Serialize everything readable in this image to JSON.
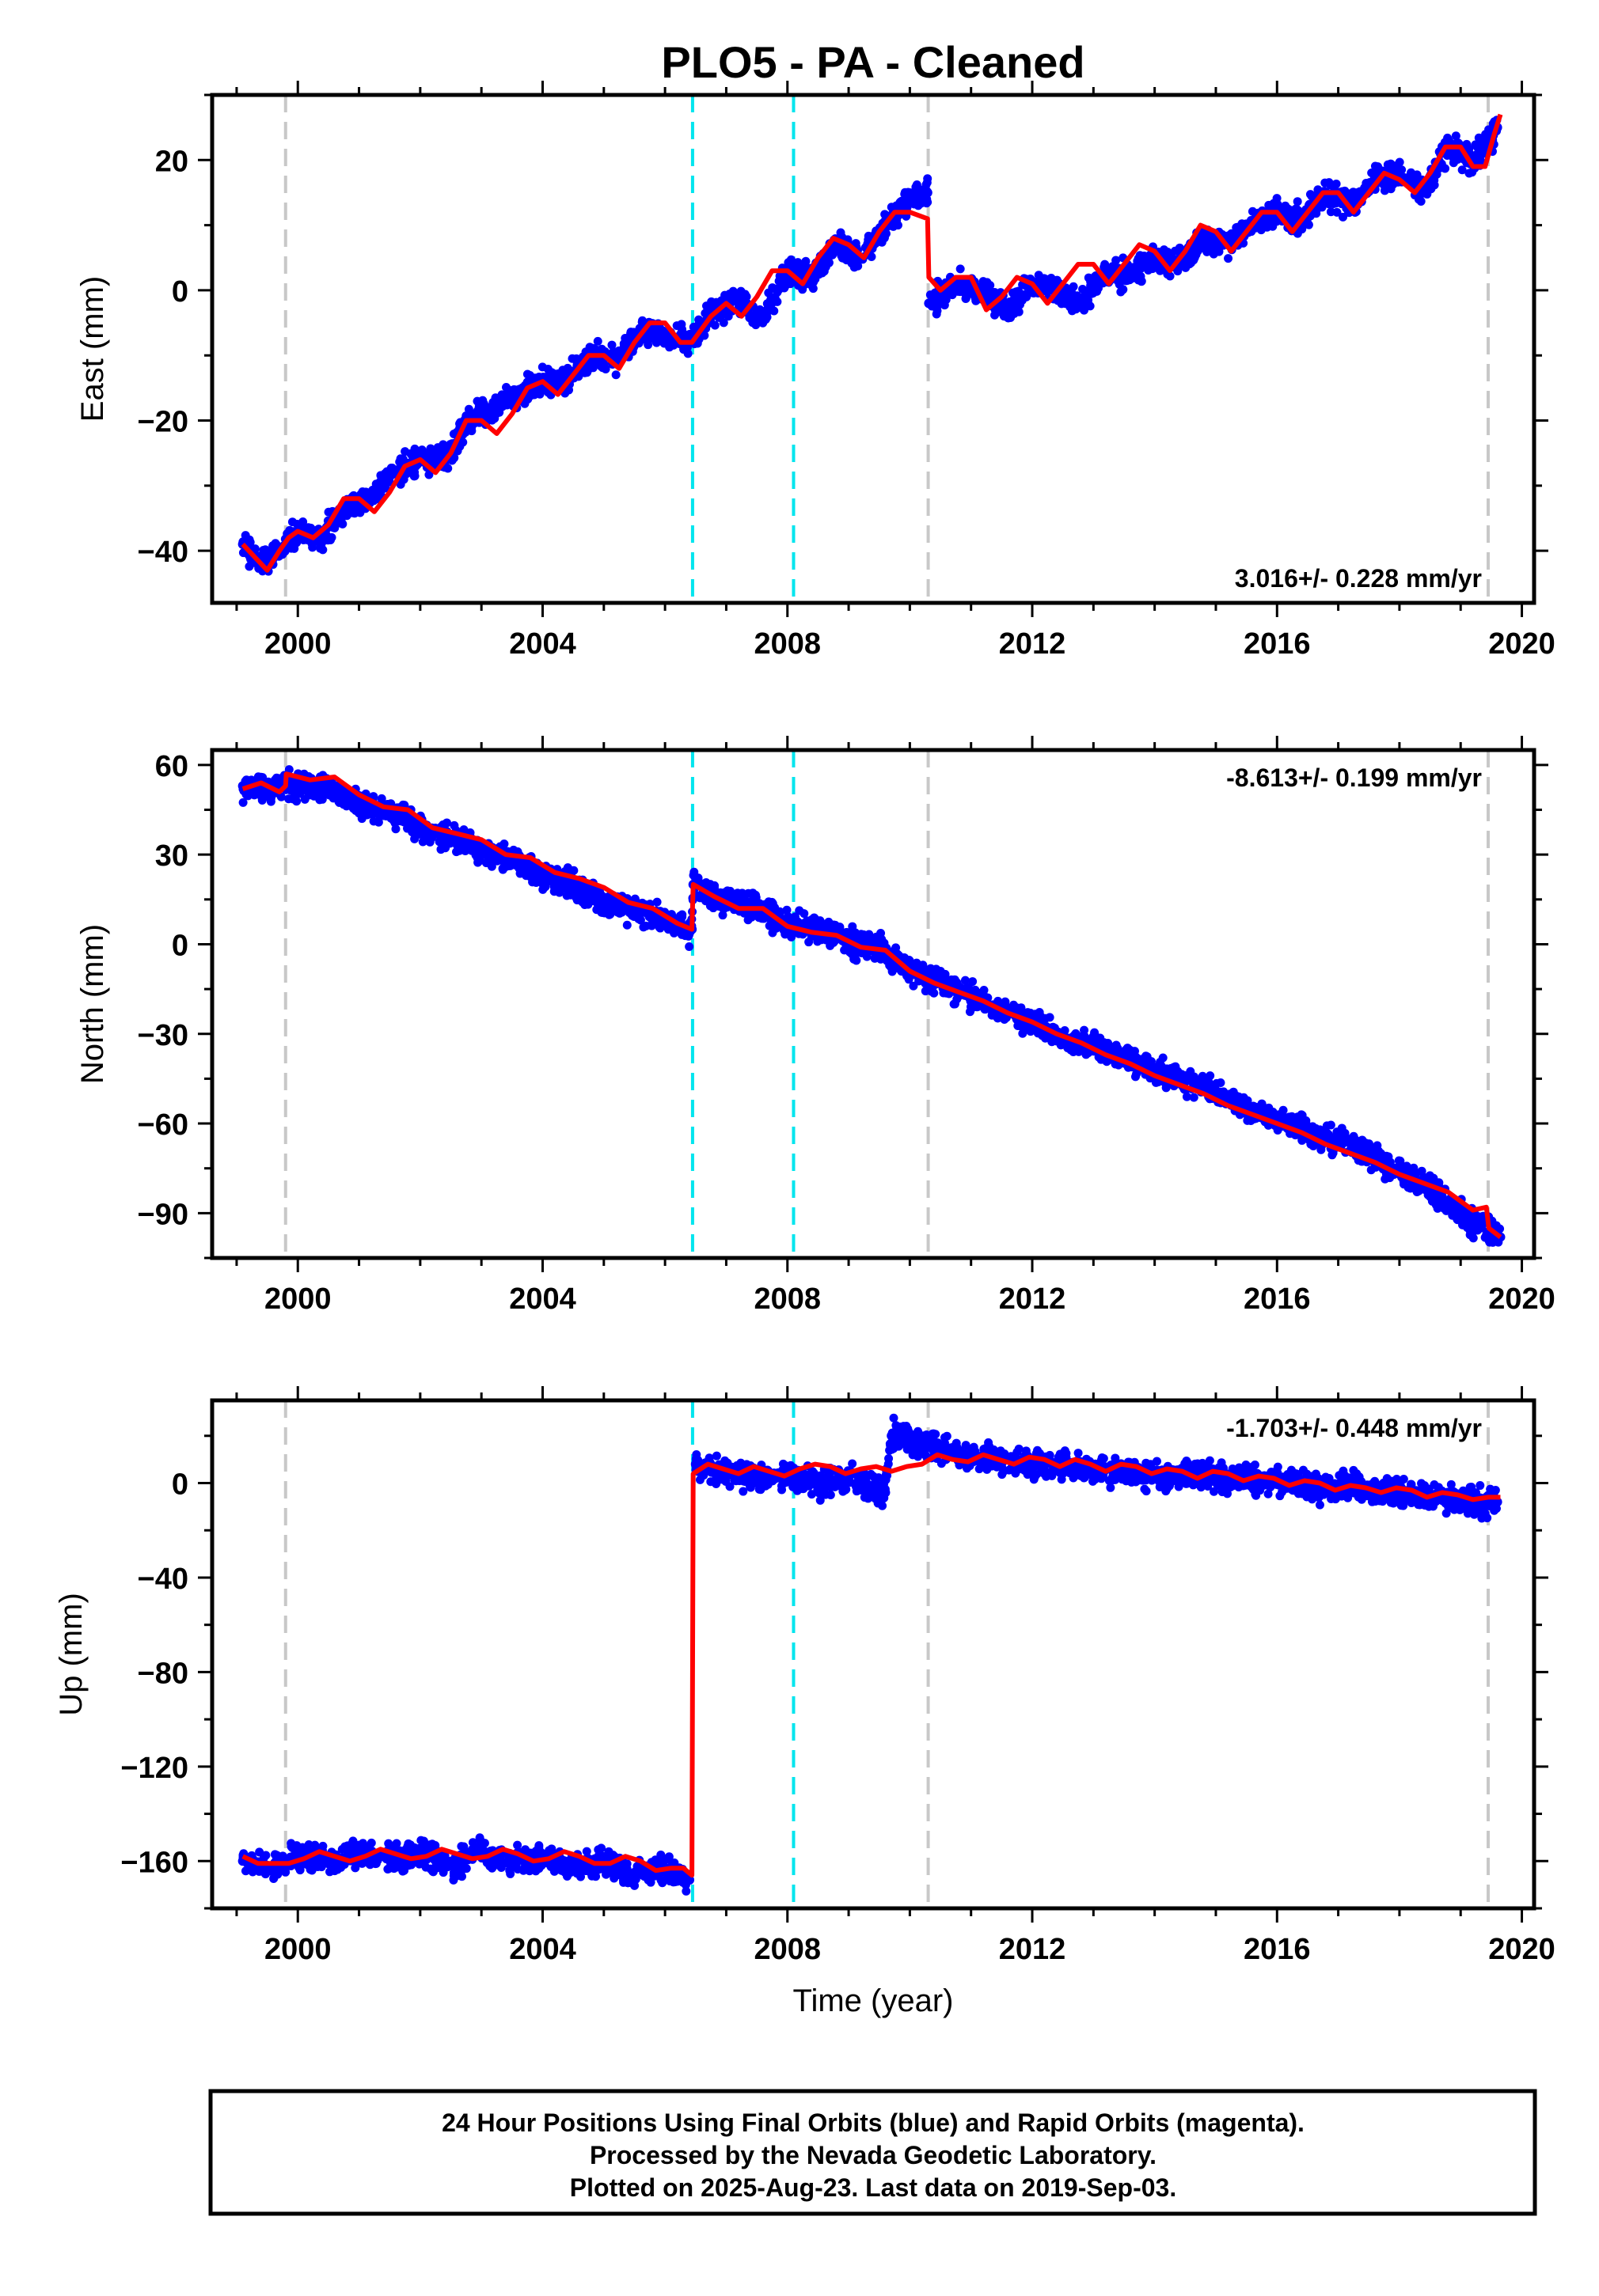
{
  "title": "PLO5  - PA - Cleaned",
  "xlabel": "Time (year)",
  "footer": {
    "lines": [
      "24 Hour Positions Using Final Orbits (blue) and Rapid Orbits (magenta).",
      "Processed by the Nevada Geodetic Laboratory.",
      "Plotted on 2025-Aug-23. Last data on 2019-Sep-03."
    ]
  },
  "colors": {
    "data_points": "#0000ff",
    "model_line": "#ff0000",
    "equipment_change_line": "#c8c8c8",
    "earthquake_line": "#00e5ee"
  },
  "chart_data": [
    {
      "type": "scatter",
      "component": "east",
      "ylabel": "East (mm)",
      "rate_text": "3.016+/- 0.228 mm/yr",
      "xlim": [
        1998.6,
        2020.2
      ],
      "ylim": [
        -48,
        30
      ],
      "xticks": [
        2000,
        2004,
        2008,
        2012,
        2016,
        2020
      ],
      "yticks": [
        -40,
        -20,
        0,
        20
      ],
      "vlines_gray": [
        1999.8,
        2010.3,
        2019.45
      ],
      "vlines_cyan": [
        2006.45,
        2008.1
      ],
      "series": [
        {
          "name": "Final Orbits",
          "x": [
            1999.1,
            1999.4,
            1999.7,
            2000.0,
            2000.4,
            2000.8,
            2001.2,
            2001.6,
            2002.0,
            2002.4,
            2002.8,
            2003.2,
            2003.6,
            2004.0,
            2004.4,
            2004.8,
            2005.2,
            2005.6,
            2006.0,
            2006.45,
            2006.8,
            2007.2,
            2007.6,
            2008.0,
            2008.4,
            2008.8,
            2009.2,
            2009.6,
            2010.0,
            2010.29,
            2010.31,
            2010.8,
            2011.2,
            2011.6,
            2012.0,
            2012.4,
            2012.8,
            2013.2,
            2013.6,
            2014.0,
            2014.4,
            2014.8,
            2015.2,
            2015.6,
            2016.0,
            2016.4,
            2016.8,
            2017.2,
            2017.6,
            2018.0,
            2018.4,
            2018.8,
            2019.2,
            2019.6
          ],
          "y": [
            -39,
            -42,
            -40,
            -37,
            -38,
            -33,
            -32,
            -28,
            -26,
            -26,
            -20,
            -18,
            -16,
            -14,
            -14,
            -10,
            -11,
            -6,
            -7,
            -8,
            -3,
            -2,
            -4,
            3,
            2,
            7,
            5,
            10,
            14,
            15,
            -2,
            1,
            0,
            -3,
            1,
            0,
            -2,
            3,
            2,
            5,
            4,
            8,
            7,
            10,
            12,
            11,
            15,
            13,
            17,
            18,
            15,
            22,
            20,
            25
          ]
        }
      ],
      "model": {
        "x": [
          1999.1,
          1999.3,
          1999.5,
          1999.7,
          1999.85,
          2000.0,
          2000.25,
          2000.5,
          2000.75,
          2001.0,
          2001.25,
          2001.5,
          2001.75,
          2002.0,
          2002.25,
          2002.5,
          2002.75,
          2003.0,
          2003.25,
          2003.5,
          2003.75,
          2004.0,
          2004.25,
          2004.5,
          2004.75,
          2005.0,
          2005.25,
          2005.5,
          2005.75,
          2006.0,
          2006.25,
          2006.44,
          2006.75,
          2007.0,
          2007.25,
          2007.5,
          2007.75,
          2008.0,
          2008.25,
          2008.5,
          2008.75,
          2009.0,
          2009.25,
          2009.5,
          2009.75,
          2010.0,
          2010.29,
          2010.31,
          2010.5,
          2010.75,
          2011.0,
          2011.25,
          2011.5,
          2011.75,
          2012.0,
          2012.25,
          2012.5,
          2012.75,
          2013.0,
          2013.25,
          2013.5,
          2013.75,
          2014.0,
          2014.25,
          2014.5,
          2014.75,
          2015.0,
          2015.25,
          2015.5,
          2015.75,
          2016.0,
          2016.25,
          2016.5,
          2016.75,
          2017.0,
          2017.25,
          2017.5,
          2017.75,
          2018.0,
          2018.25,
          2018.5,
          2018.75,
          2019.0,
          2019.2,
          2019.4,
          2019.55,
          2019.65
        ],
        "y": [
          -39,
          -41,
          -43,
          -40,
          -38,
          -37,
          -38,
          -36,
          -32,
          -32,
          -34,
          -31,
          -27,
          -26,
          -28,
          -25,
          -20,
          -20,
          -22,
          -19,
          -15,
          -14,
          -16,
          -13,
          -10,
          -10,
          -12,
          -8,
          -5,
          -5,
          -8,
          -8,
          -4,
          -2,
          -4,
          -1,
          3,
          3,
          1,
          5,
          8,
          7,
          5,
          9,
          12,
          12,
          11,
          2,
          0,
          2,
          2,
          -3,
          -1,
          2,
          1,
          -2,
          1,
          4,
          4,
          1,
          4,
          7,
          6,
          3,
          6,
          10,
          9,
          6,
          9,
          12,
          12,
          9,
          12,
          15,
          15,
          12,
          15,
          18,
          17,
          15,
          18,
          22,
          22,
          19,
          19,
          24,
          27
        ]
      }
    },
    {
      "type": "scatter",
      "component": "north",
      "ylabel": "North (mm)",
      "rate_text": "-8.613+/- 0.199 mm/yr",
      "xlim": [
        1998.6,
        2020.2
      ],
      "ylim": [
        -105,
        65
      ],
      "xticks": [
        2000,
        2004,
        2008,
        2012,
        2016,
        2020
      ],
      "yticks": [
        -90,
        -60,
        -30,
        0,
        30,
        60
      ],
      "vlines_gray": [
        1999.8,
        2010.3,
        2019.45
      ],
      "vlines_cyan": [
        2006.45,
        2008.1
      ],
      "series": [
        {
          "name": "Final Orbits",
          "x": [
            1999.1,
            1999.5,
            2000.0,
            2000.5,
            2001.0,
            2001.5,
            2002.0,
            2002.5,
            2003.0,
            2003.5,
            2004.0,
            2004.5,
            2005.0,
            2005.5,
            2006.0,
            2006.44,
            2006.46,
            2007.0,
            2007.5,
            2008.0,
            2008.5,
            2009.0,
            2009.5,
            2010.0,
            2010.5,
            2011.0,
            2011.5,
            2012.0,
            2012.5,
            2013.0,
            2013.5,
            2014.0,
            2014.5,
            2015.0,
            2015.5,
            2016.0,
            2016.5,
            2017.0,
            2017.5,
            2018.0,
            2018.5,
            2019.0,
            2019.5,
            2019.65
          ],
          "y": [
            53,
            52,
            54,
            52,
            47,
            45,
            39,
            36,
            31,
            29,
            22,
            20,
            14,
            12,
            8,
            5,
            20,
            14,
            12,
            7,
            5,
            1,
            -1,
            -9,
            -13,
            -18,
            -22,
            -26,
            -31,
            -34,
            -38,
            -42,
            -46,
            -49,
            -55,
            -58,
            -63,
            -66,
            -71,
            -76,
            -82,
            -90,
            -96,
            -98
          ]
        }
      ],
      "model": {
        "x": [
          1999.1,
          1999.4,
          1999.7,
          1999.8,
          1999.81,
          2000.2,
          2000.6,
          2001.0,
          2001.4,
          2001.8,
          2002.2,
          2002.6,
          2003.0,
          2003.4,
          2003.8,
          2004.2,
          2004.6,
          2005.0,
          2005.4,
          2005.8,
          2006.2,
          2006.44,
          2006.46,
          2006.8,
          2007.2,
          2007.6,
          2008.0,
          2008.4,
          2008.8,
          2009.2,
          2009.6,
          2010.0,
          2010.4,
          2010.8,
          2011.2,
          2011.6,
          2012.0,
          2012.4,
          2012.8,
          2013.2,
          2013.6,
          2014.0,
          2014.4,
          2014.8,
          2015.2,
          2015.6,
          2016.0,
          2016.4,
          2016.8,
          2017.2,
          2017.6,
          2018.0,
          2018.4,
          2018.8,
          2019.2,
          2019.42,
          2019.46,
          2019.65
        ],
        "y": [
          52,
          54,
          51,
          53,
          57,
          55,
          56,
          50,
          46,
          45,
          39,
          37,
          35,
          30,
          29,
          24,
          22,
          19,
          14,
          12,
          7,
          5,
          20,
          16,
          12,
          12,
          6,
          4,
          3,
          -1,
          -2,
          -9,
          -13,
          -16,
          -19,
          -23,
          -26,
          -30,
          -33,
          -37,
          -40,
          -44,
          -47,
          -50,
          -54,
          -57,
          -60,
          -63,
          -67,
          -70,
          -73,
          -77,
          -80,
          -83,
          -89,
          -88,
          -95,
          -98
        ]
      }
    },
    {
      "type": "scatter",
      "component": "up",
      "ylabel": "Up (mm)",
      "rate_text": "-1.703+/- 0.448 mm/yr",
      "xlim": [
        1998.6,
        2020.2
      ],
      "ylim": [
        -180,
        35
      ],
      "xticks": [
        2000,
        2004,
        2008,
        2012,
        2016,
        2020
      ],
      "yticks": [
        -160,
        -120,
        -80,
        -40,
        0
      ],
      "vlines_gray": [
        1999.8,
        2010.3,
        2019.45
      ],
      "vlines_cyan": [
        2006.45,
        2008.1
      ],
      "series": [
        {
          "name": "Final Orbits",
          "x": [
            1999.1,
            1999.5,
            2000.0,
            2000.5,
            2001.0,
            2001.5,
            2002.0,
            2002.5,
            2003.0,
            2003.5,
            2004.0,
            2004.5,
            2005.0,
            2005.5,
            2006.0,
            2006.4,
            2006.5,
            2007.0,
            2007.5,
            2008.0,
            2008.5,
            2009.0,
            2009.6,
            2009.7,
            2010.2,
            2010.8,
            2011.5,
            2012.2,
            2013.0,
            2013.8,
            2014.5,
            2015.2,
            2016.0,
            2016.8,
            2017.2,
            2017.6,
            2018.0,
            2018.6,
            2019.2,
            2019.6
          ],
          "y": [
            -160,
            -163,
            -158,
            -161,
            -155,
            -159,
            -157,
            -162,
            -156,
            -160,
            -158,
            -163,
            -160,
            -166,
            -163,
            -168,
            8,
            5,
            2,
            3,
            0,
            2,
            -4,
            20,
            17,
            12,
            10,
            8,
            6,
            4,
            3,
            2,
            1,
            -2,
            -1,
            -3,
            -4,
            -6,
            -8,
            -8
          ]
        }
      ],
      "model": {
        "x": [
          1999.1,
          1999.35,
          1999.6,
          1999.85,
          2000.1,
          2000.35,
          2000.6,
          2000.85,
          2001.1,
          2001.35,
          2001.6,
          2001.85,
          2002.1,
          2002.35,
          2002.6,
          2002.85,
          2003.1,
          2003.35,
          2003.6,
          2003.85,
          2004.1,
          2004.35,
          2004.6,
          2004.85,
          2005.1,
          2005.35,
          2005.6,
          2005.85,
          2006.1,
          2006.3,
          2006.44,
          2006.46,
          2006.7,
          2006.95,
          2007.2,
          2007.45,
          2007.7,
          2007.95,
          2008.2,
          2008.45,
          2008.7,
          2008.95,
          2009.2,
          2009.45,
          2009.7,
          2009.95,
          2010.2,
          2010.45,
          2010.7,
          2010.95,
          2011.2,
          2011.45,
          2011.7,
          2011.95,
          2012.2,
          2012.45,
          2012.7,
          2012.95,
          2013.2,
          2013.45,
          2013.7,
          2013.95,
          2014.2,
          2014.45,
          2014.7,
          2014.95,
          2015.2,
          2015.45,
          2015.7,
          2015.95,
          2016.2,
          2016.45,
          2016.7,
          2016.95,
          2017.2,
          2017.45,
          2017.7,
          2017.95,
          2018.2,
          2018.45,
          2018.7,
          2018.95,
          2019.2,
          2019.45,
          2019.65
        ],
        "y": [
          -158,
          -161,
          -161,
          -161,
          -159,
          -156,
          -158,
          -160,
          -158,
          -155,
          -157,
          -159,
          -158,
          -155,
          -157,
          -159,
          -158,
          -155,
          -157,
          -160,
          -159,
          -156,
          -158,
          -161,
          -161,
          -158,
          -160,
          -164,
          -163,
          -163,
          -166,
          4,
          8,
          6,
          4,
          7,
          5,
          3,
          6,
          8,
          7,
          4,
          6,
          7,
          5,
          7,
          8,
          12,
          10,
          9,
          12,
          10,
          8,
          11,
          10,
          7,
          10,
          8,
          5,
          8,
          7,
          4,
          6,
          5,
          2,
          5,
          4,
          1,
          3,
          2,
          -1,
          1,
          0,
          -3,
          -1,
          -2,
          -4,
          -2,
          -3,
          -6,
          -4,
          -5,
          -7,
          -6,
          -6
        ]
      }
    }
  ]
}
